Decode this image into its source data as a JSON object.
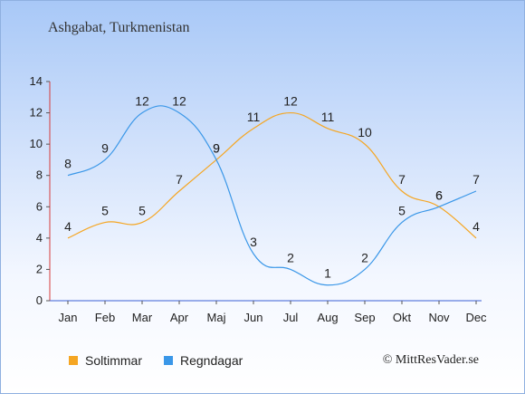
{
  "title": "Ashgabat, Turkmenistan",
  "credit": "© MittResVader.se",
  "chart_data": {
    "type": "line",
    "categories": [
      "Jan",
      "Feb",
      "Mar",
      "Apr",
      "Maj",
      "Jun",
      "Jul",
      "Aug",
      "Sep",
      "Okt",
      "Nov",
      "Dec"
    ],
    "ylim": [
      0,
      14
    ],
    "yticks": [
      0,
      2,
      4,
      6,
      8,
      10,
      12,
      14
    ],
    "grid": false,
    "legend_position": "bottom",
    "series": [
      {
        "name": "Soltimmar",
        "color": "#f5a623",
        "values": [
          4,
          5,
          5,
          7,
          9,
          11,
          12,
          11,
          10,
          7,
          6,
          4
        ]
      },
      {
        "name": "Regndagar",
        "color": "#3a97e8",
        "values": [
          8,
          9,
          12,
          12,
          9,
          3,
          2,
          1,
          2,
          5,
          6,
          7
        ]
      }
    ]
  }
}
